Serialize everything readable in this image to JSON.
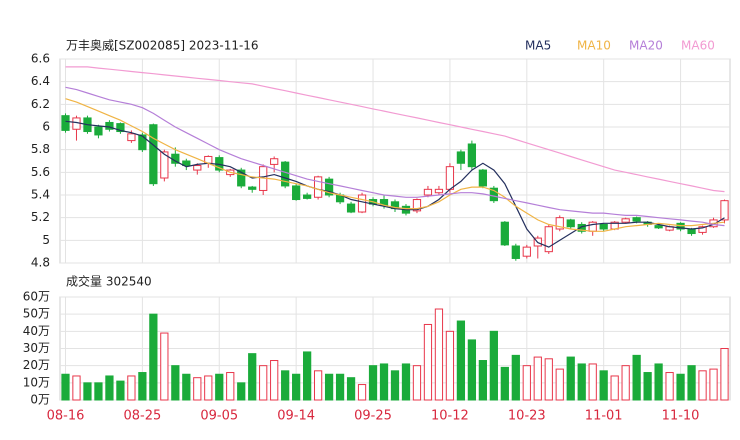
{
  "chart_data": {
    "type": "candlestick",
    "title": "万丰奥威[SZ002085] 2023-11-16",
    "volume_title": "成交量 302540",
    "categories": [
      "08-16",
      null,
      null,
      null,
      null,
      null,
      null,
      "08-25",
      null,
      null,
      null,
      null,
      null,
      null,
      "09-05",
      null,
      null,
      null,
      null,
      null,
      null,
      "09-14",
      null,
      null,
      null,
      null,
      null,
      null,
      "09-25",
      null,
      null,
      null,
      null,
      null,
      null,
      "10-12",
      null,
      null,
      null,
      null,
      null,
      null,
      "10-23",
      null,
      null,
      null,
      null,
      null,
      null,
      "11-01",
      null,
      null,
      null,
      null,
      null,
      null,
      "11-10",
      null,
      null,
      null,
      null
    ],
    "open": [
      6.1,
      5.98,
      6.08,
      6.0,
      6.04,
      6.03,
      5.88,
      5.93,
      6.02,
      5.55,
      5.76,
      5.7,
      5.62,
      5.68,
      5.73,
      5.58,
      5.62,
      5.47,
      5.44,
      5.67,
      5.69,
      5.48,
      5.4,
      5.38,
      5.54,
      5.4,
      5.32,
      5.25,
      5.36,
      5.36,
      5.34,
      5.3,
      5.26,
      5.4,
      5.42,
      5.45,
      5.78,
      5.85,
      5.62,
      5.46,
      5.16,
      4.95,
      4.86,
      4.95,
      4.9,
      5.1,
      5.18,
      5.14,
      5.08,
      5.14,
      5.1,
      5.16,
      5.2,
      5.16,
      5.13,
      5.09,
      5.15,
      5.1,
      5.07,
      5.12,
      5.18
    ],
    "high": [
      6.12,
      6.1,
      6.1,
      6.02,
      6.06,
      6.04,
      5.97,
      5.95,
      6.03,
      5.8,
      5.82,
      5.72,
      5.68,
      5.75,
      5.75,
      5.63,
      5.64,
      5.48,
      5.67,
      5.74,
      5.7,
      5.5,
      5.42,
      5.57,
      5.56,
      5.42,
      5.34,
      5.42,
      5.38,
      5.4,
      5.36,
      5.32,
      5.37,
      5.48,
      5.48,
      5.68,
      5.8,
      5.88,
      5.63,
      5.48,
      5.17,
      4.97,
      4.96,
      5.04,
      5.14,
      5.22,
      5.19,
      5.16,
      5.17,
      5.15,
      5.17,
      5.2,
      5.21,
      5.17,
      5.14,
      5.13,
      5.16,
      5.11,
      5.13,
      5.2,
      5.36
    ],
    "low": [
      5.95,
      5.88,
      5.94,
      5.9,
      5.96,
      5.94,
      5.86,
      5.78,
      5.48,
      5.52,
      5.65,
      5.62,
      5.58,
      5.64,
      5.6,
      5.56,
      5.46,
      5.42,
      5.4,
      5.6,
      5.46,
      5.35,
      5.36,
      5.36,
      5.38,
      5.32,
      5.24,
      5.24,
      5.3,
      5.28,
      5.25,
      5.22,
      5.24,
      5.38,
      5.4,
      5.42,
      5.62,
      5.62,
      5.46,
      5.33,
      4.95,
      4.82,
      4.84,
      4.84,
      4.88,
      5.08,
      5.1,
      5.06,
      5.04,
      5.08,
      5.09,
      5.15,
      5.15,
      5.12,
      5.1,
      5.08,
      5.08,
      5.04,
      5.05,
      5.11,
      5.15
    ],
    "close": [
      5.97,
      6.08,
      5.96,
      5.93,
      5.98,
      5.96,
      5.94,
      5.8,
      5.5,
      5.78,
      5.68,
      5.66,
      5.66,
      5.74,
      5.62,
      5.62,
      5.48,
      5.45,
      5.65,
      5.72,
      5.48,
      5.36,
      5.37,
      5.56,
      5.4,
      5.34,
      5.25,
      5.4,
      5.32,
      5.31,
      5.28,
      5.24,
      5.36,
      5.45,
      5.45,
      5.65,
      5.68,
      5.65,
      5.48,
      5.35,
      4.96,
      4.84,
      4.94,
      5.02,
      5.12,
      5.2,
      5.12,
      5.08,
      5.16,
      5.1,
      5.16,
      5.19,
      5.17,
      5.14,
      5.11,
      5.12,
      5.1,
      5.06,
      5.12,
      5.18,
      5.35
    ],
    "volume": [
      15,
      14,
      10,
      10,
      14,
      11,
      14,
      16,
      50,
      39,
      20,
      15,
      13,
      14,
      15,
      16,
      10,
      27,
      20,
      23,
      17,
      15,
      28,
      17,
      15,
      15,
      13,
      9,
      20,
      21,
      17,
      21,
      20,
      44,
      53,
      40,
      46,
      35,
      23,
      40,
      19,
      26,
      20,
      25,
      24,
      18,
      25,
      21,
      21,
      17,
      14,
      20,
      26,
      16,
      21,
      16,
      15,
      20,
      17,
      18,
      30
    ],
    "up_color": "#e8364a",
    "down_color": "#1aab3a",
    "series": [
      {
        "name": "MA5",
        "color": "#24305e",
        "values": [
          6.05,
          6.04,
          6.02,
          6.01,
          6.0,
          5.97,
          5.95,
          5.92,
          5.84,
          5.76,
          5.7,
          5.65,
          5.67,
          5.68,
          5.67,
          5.65,
          5.6,
          5.55,
          5.56,
          5.58,
          5.55,
          5.52,
          5.48,
          5.45,
          5.43,
          5.4,
          5.36,
          5.34,
          5.32,
          5.3,
          5.28,
          5.27,
          5.27,
          5.3,
          5.36,
          5.45,
          5.52,
          5.62,
          5.68,
          5.62,
          5.5,
          5.3,
          5.1,
          4.98,
          4.94,
          5.0,
          5.06,
          5.12,
          5.14,
          5.15,
          5.15,
          5.15,
          5.16,
          5.16,
          5.14,
          5.12,
          5.11,
          5.1,
          5.11,
          5.14,
          5.2
        ]
      },
      {
        "name": "MA10",
        "color": "#f0b445",
        "values": [
          6.25,
          6.22,
          6.18,
          6.14,
          6.1,
          6.06,
          6.01,
          5.96,
          5.9,
          5.85,
          5.8,
          5.76,
          5.72,
          5.68,
          5.64,
          5.6,
          5.58,
          5.56,
          5.55,
          5.54,
          5.52,
          5.5,
          5.48,
          5.45,
          5.42,
          5.4,
          5.38,
          5.36,
          5.34,
          5.31,
          5.29,
          5.28,
          5.28,
          5.3,
          5.34,
          5.4,
          5.45,
          5.47,
          5.47,
          5.44,
          5.38,
          5.3,
          5.24,
          5.18,
          5.14,
          5.12,
          5.1,
          5.09,
          5.08,
          5.08,
          5.1,
          5.12,
          5.13,
          5.14,
          5.15,
          5.14,
          5.13,
          5.13,
          5.14,
          5.15,
          5.16
        ]
      },
      {
        "name": "MA20",
        "color": "#b57fd8",
        "values": [
          6.35,
          6.33,
          6.3,
          6.27,
          6.24,
          6.22,
          6.2,
          6.17,
          6.12,
          6.06,
          6.0,
          5.95,
          5.9,
          5.85,
          5.8,
          5.76,
          5.72,
          5.69,
          5.66,
          5.63,
          5.6,
          5.57,
          5.54,
          5.52,
          5.5,
          5.48,
          5.46,
          5.44,
          5.42,
          5.4,
          5.39,
          5.38,
          5.38,
          5.39,
          5.4,
          5.41,
          5.42,
          5.42,
          5.41,
          5.39,
          5.37,
          5.35,
          5.33,
          5.31,
          5.29,
          5.27,
          5.26,
          5.25,
          5.24,
          5.24,
          5.23,
          5.22,
          5.22,
          5.21,
          5.2,
          5.19,
          5.18,
          5.17,
          5.16,
          5.14,
          5.13
        ]
      },
      {
        "name": "MA60",
        "color": "#f29bd2",
        "values": [
          6.53,
          6.53,
          6.53,
          6.52,
          6.51,
          6.5,
          6.49,
          6.48,
          6.47,
          6.46,
          6.45,
          6.44,
          6.43,
          6.42,
          6.41,
          6.4,
          6.39,
          6.38,
          6.36,
          6.34,
          6.32,
          6.3,
          6.28,
          6.26,
          6.24,
          6.22,
          6.2,
          6.18,
          6.16,
          6.14,
          6.12,
          6.1,
          6.08,
          6.06,
          6.04,
          6.02,
          6.0,
          5.98,
          5.96,
          5.94,
          5.92,
          5.89,
          5.86,
          5.83,
          5.8,
          5.77,
          5.74,
          5.71,
          5.68,
          5.65,
          5.62,
          5.6,
          5.58,
          5.56,
          5.54,
          5.52,
          5.5,
          5.48,
          5.46,
          5.44,
          5.43
        ]
      }
    ],
    "ylim": [
      4.8,
      6.6
    ],
    "yticks": [
      4.8,
      5,
      5.2,
      5.4,
      5.6,
      5.8,
      6,
      6.2,
      6.4,
      6.6
    ],
    "vlim": [
      0,
      60
    ],
    "vticks": [
      {
        "value": 0,
        "label": "0万"
      },
      {
        "value": 10,
        "label": "10万"
      },
      {
        "value": 20,
        "label": "20万"
      },
      {
        "value": 30,
        "label": "30万"
      },
      {
        "value": 40,
        "label": "40万"
      },
      {
        "value": 50,
        "label": "50万"
      },
      {
        "value": 60,
        "label": "60万"
      }
    ],
    "grid": true
  }
}
